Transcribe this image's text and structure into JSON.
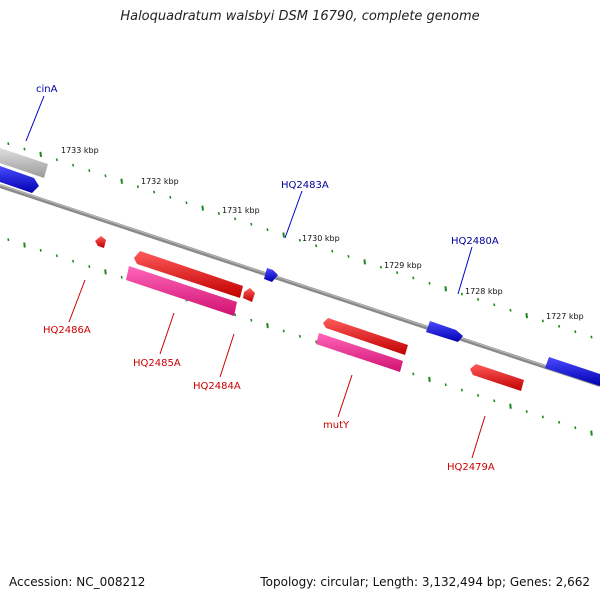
{
  "title": "Haloquadratum walsbyi DSM 16790, complete genome",
  "footer": {
    "accession": "Accession: NC_008212",
    "summary": "Topology: circular; Length: 3,132,494 bp; Genes: 2,662"
  },
  "colors": {
    "backbone": "#808080",
    "tick": "#1a8a1a",
    "forward_gene": "#0000ee",
    "reverse_gene": "#ee0000",
    "reverse_gene_pink": "#ff3399",
    "partial_gene": "#b8b8b8",
    "forward_label": "#000099",
    "reverse_label": "#cc0000"
  },
  "kbp_labels": [
    "1733 kbp",
    "1732 kbp",
    "1731 kbp",
    "1730 kbp",
    "1729 kbp",
    "1728 kbp",
    "1727 kbp"
  ],
  "genes": {
    "forward": [
      "cinA",
      "HQ2483A",
      "HQ2480A"
    ],
    "reverse": [
      "HQ2486A",
      "HQ2485A",
      "HQ2484A",
      "mutY",
      "HQ2479A"
    ]
  }
}
